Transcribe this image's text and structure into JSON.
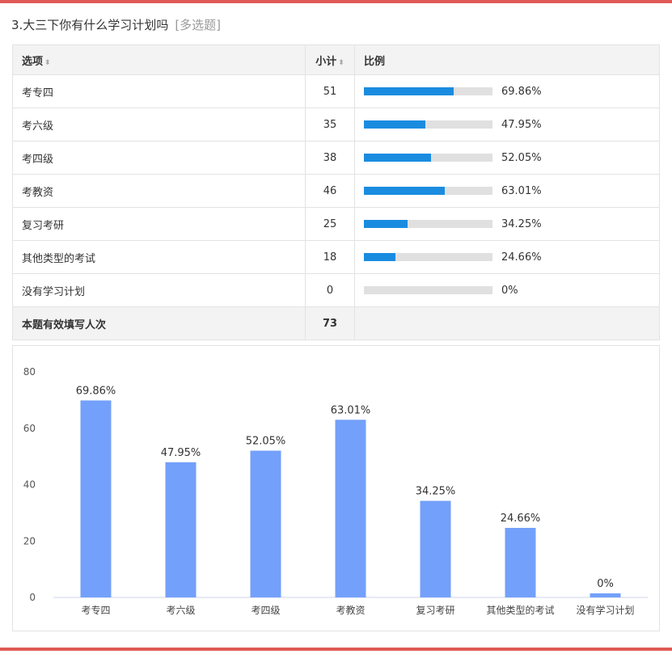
{
  "question": {
    "title": "3.大三下你有什么学习计划吗",
    "type_tag": "[多选题]"
  },
  "table": {
    "headers": {
      "option": "选项",
      "count": "小计",
      "ratio": "比例"
    },
    "rows": [
      {
        "option": "考专四",
        "count": "51",
        "percent": "69.86%",
        "fill": 69.86
      },
      {
        "option": "考六级",
        "count": "35",
        "percent": "47.95%",
        "fill": 47.95
      },
      {
        "option": "考四级",
        "count": "38",
        "percent": "52.05%",
        "fill": 52.05
      },
      {
        "option": "考教资",
        "count": "46",
        "percent": "63.01%",
        "fill": 63.01
      },
      {
        "option": "复习考研",
        "count": "25",
        "percent": "34.25%",
        "fill": 34.25
      },
      {
        "option": "其他类型的考试",
        "count": "18",
        "percent": "24.66%",
        "fill": 24.66
      },
      {
        "option": "没有学习计划",
        "count": "0",
        "percent": "0%",
        "fill": 0
      }
    ],
    "total": {
      "label": "本题有效填写人次",
      "count": "73"
    }
  },
  "colors": {
    "accent_red": "#e05a55",
    "table_bar": "#1a8ce0",
    "chart_bar": "#73a0fa",
    "track": "#e0e0e0"
  },
  "chart_data": {
    "type": "bar",
    "categories": [
      "考专四",
      "考六级",
      "考四级",
      "考教资",
      "复习考研",
      "其他类型的考试",
      "没有学习计划"
    ],
    "values": [
      69.86,
      47.95,
      52.05,
      63.01,
      34.25,
      24.66,
      0
    ],
    "data_labels": [
      "69.86%",
      "47.95%",
      "52.05%",
      "63.01%",
      "34.25%",
      "24.66%",
      "0%"
    ],
    "ylim": [
      0,
      80
    ],
    "yticks": [
      "0",
      "20",
      "40",
      "60",
      "80"
    ],
    "grid": false
  }
}
